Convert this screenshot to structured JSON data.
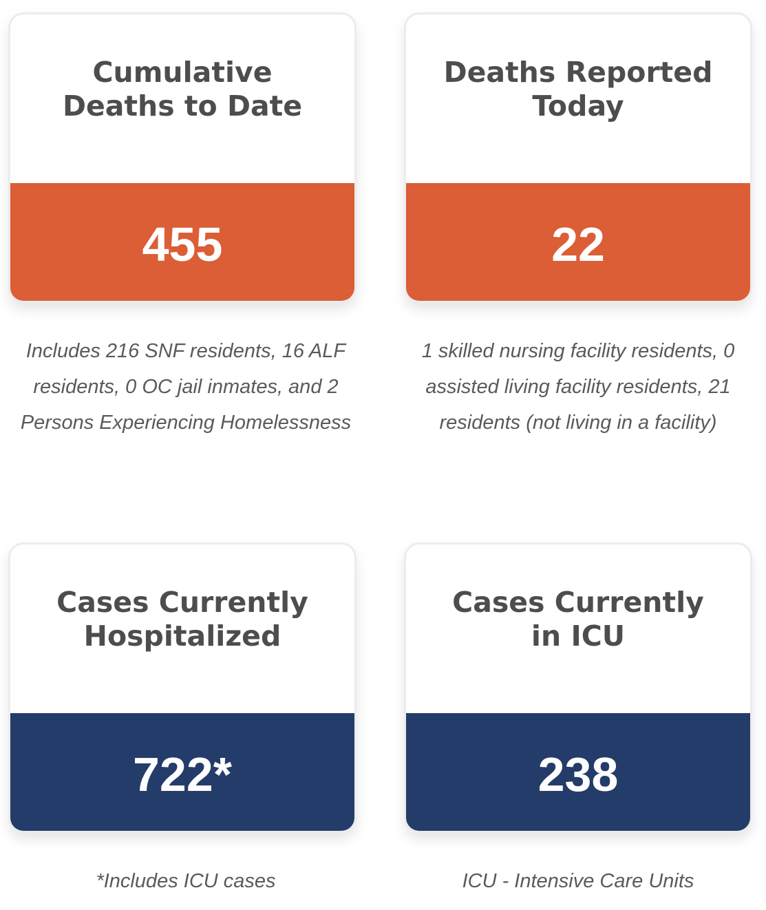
{
  "cards": [
    {
      "title": "Cumulative\nDeaths to Date",
      "value": "455",
      "note": "Includes 216 SNF residents, 16 ALF residents, 0 OC jail inmates, and 2 Persons Experiencing Homelessness"
    },
    {
      "title": "Deaths Reported\nToday",
      "value": "22",
      "note": "1 skilled nursing facility residents, 0 assisted living facility residents, 21 residents (not living in a facility)"
    },
    {
      "title": "Cases Currently\nHospitalized",
      "value": "722*",
      "note": "*Includes ICU cases"
    },
    {
      "title": "Cases Currently\nin ICU",
      "value": "238",
      "note": "ICU - Intensive Care Units"
    }
  ],
  "colors": {
    "deaths_band": "#db5e36",
    "cases_band": "#233c69",
    "title_text": "#4d4d4d",
    "note_text": "#5a5a5a"
  }
}
